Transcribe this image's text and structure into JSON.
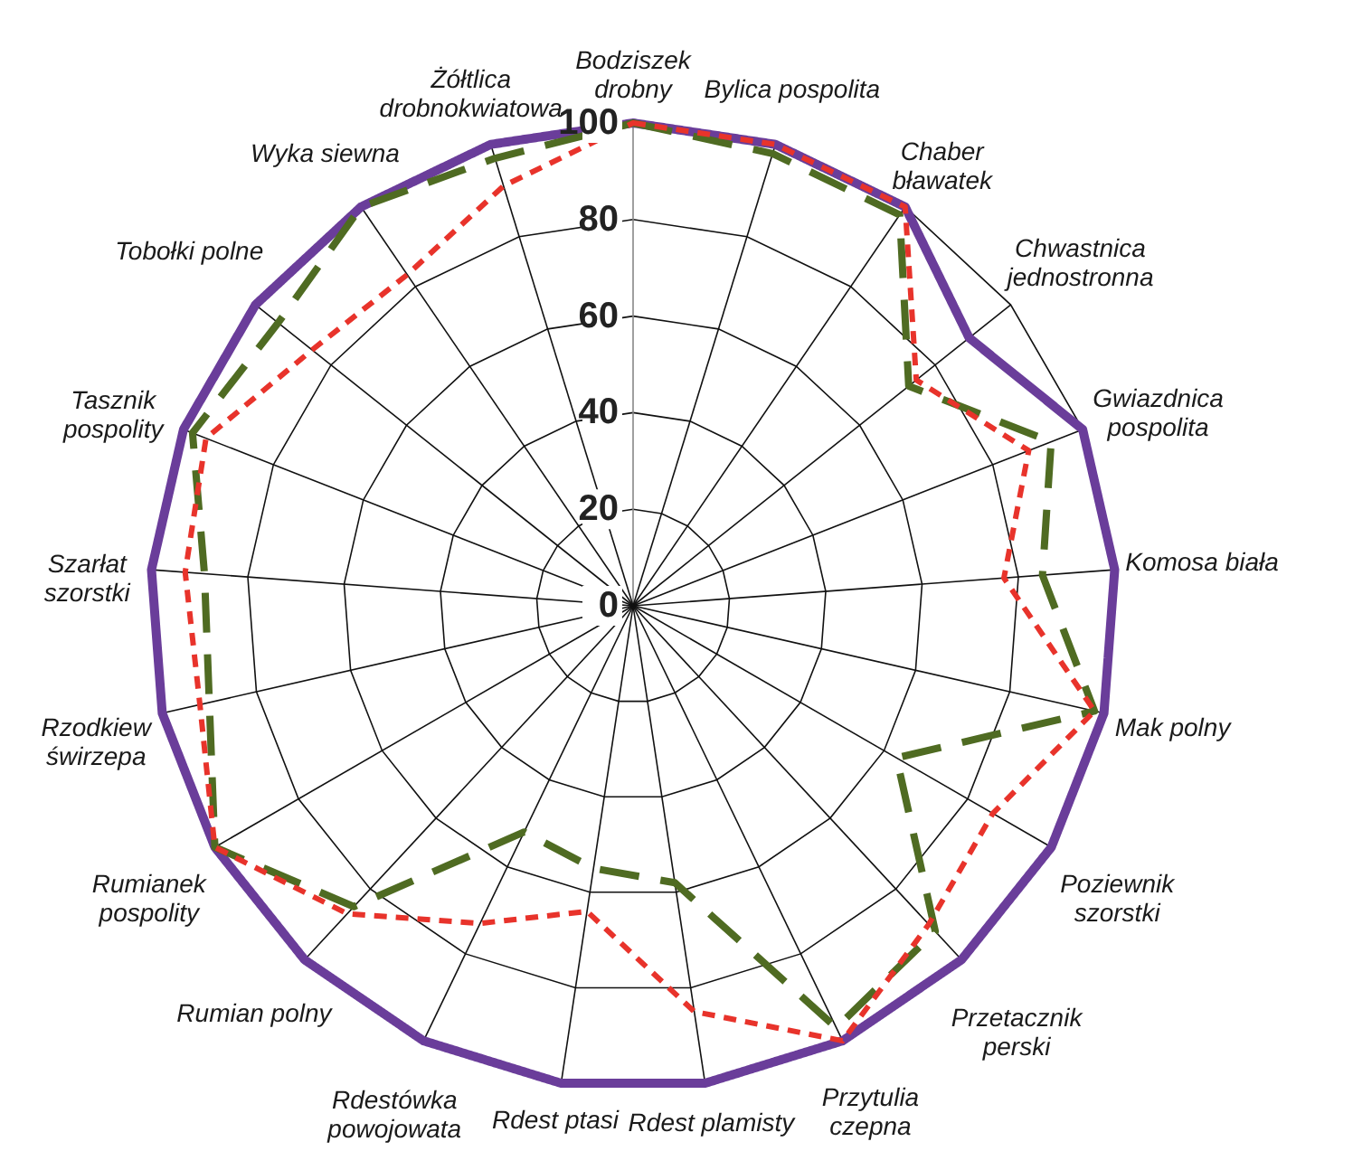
{
  "chart_data": {
    "type": "radar",
    "categories": [
      "Bodziszek\ndrobny",
      "Bylica pospolita",
      "Chaber\nbławatek",
      "Chwastnica\njednostronna",
      "Gwiazdnica\npospolita",
      "Komosa biała",
      "Mak polny",
      "Poziewnik\nszorstki",
      "Przetacznik\nperski",
      "Przytulia\nczepna",
      "Rdest plamisty",
      "Rdest ptasi",
      "Rdestówka\npowojowata",
      "Rumian polny",
      "Rumianek\npospolity",
      "Rzodkiew\nświrzepa",
      "Szarłat\nszorstki",
      "Tasznik\npospolity",
      "Tobołki polne",
      "Wyka siewna",
      "Żółtlica\ndrobnokwiatowa"
    ],
    "series": [
      {
        "color": "#6a3d9a",
        "line_style": "solid",
        "values": [
          100,
          100,
          100,
          89,
          100,
          100,
          100,
          100,
          100,
          100,
          100,
          100,
          100,
          100,
          100,
          100,
          100,
          100,
          100,
          100,
          100
        ]
      },
      {
        "color": "#4f6b22",
        "line_style": "dashed",
        "values": [
          100,
          98,
          98,
          73,
          93,
          85,
          98,
          63,
          92,
          97,
          58,
          55,
          52,
          85,
          100,
          90,
          89,
          98,
          94,
          100,
          97
        ]
      },
      {
        "color": "#e8332b",
        "line_style": "dotted",
        "values": [
          100,
          100,
          100,
          75,
          88,
          77,
          98,
          86,
          90,
          100,
          85,
          64,
          73,
          87,
          100,
          92,
          93,
          95,
          85,
          83,
          91
        ]
      }
    ],
    "ylim": [
      0,
      100
    ],
    "yticks": [
      0,
      20,
      40,
      60,
      80,
      100
    ],
    "grid": true
  }
}
